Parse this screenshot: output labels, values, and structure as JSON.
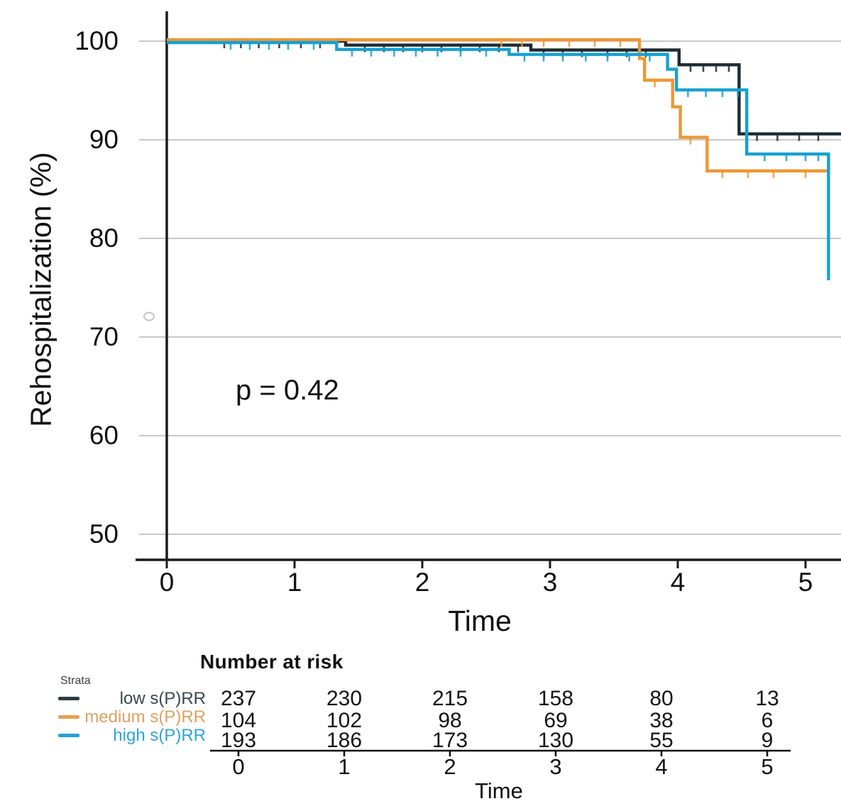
{
  "figure": {
    "ylabel": "Rehospitalization (%)",
    "xlabel": "Time",
    "p_value": "p = 0.42"
  },
  "chart_data": {
    "type": "line",
    "subtype": "kaplan-meier-step-curves",
    "title": "",
    "xlabel": "Time",
    "ylabel": "Rehospitalization (%)",
    "xlim": [
      0,
      5.3
    ],
    "ylim": [
      47,
      103
    ],
    "xticks": [
      0,
      1,
      2,
      3,
      4,
      5
    ],
    "yticks": [
      100,
      90,
      80,
      70,
      60,
      50
    ],
    "grid": "horizontal",
    "legend_position": "bottom-left",
    "annotation": {
      "text": "p = 0.42",
      "x": 0.55,
      "y": 64
    },
    "axis_color": "#1a1a1a",
    "grid_color": "#a9a9a9",
    "series": [
      {
        "id": "low",
        "name": "low s(P)RR",
        "color": "#1d2b32",
        "offset": 0,
        "steps": [
          [
            0,
            100
          ],
          [
            1.4,
            99.6
          ],
          [
            2.85,
            99.1
          ],
          [
            4.01,
            97.6
          ],
          [
            4.48,
            90.6
          ]
        ],
        "end": 5.28,
        "censors": [
          [
            0.45,
            100
          ],
          [
            0.58,
            100
          ],
          [
            0.72,
            100
          ],
          [
            0.88,
            100
          ],
          [
            1.05,
            100
          ],
          [
            1.2,
            100
          ],
          [
            1.55,
            99.6
          ],
          [
            1.7,
            99.6
          ],
          [
            1.85,
            99.6
          ],
          [
            2.0,
            99.6
          ],
          [
            2.15,
            99.6
          ],
          [
            2.3,
            99.6
          ],
          [
            2.45,
            99.6
          ],
          [
            2.6,
            99.6
          ],
          [
            2.75,
            99.6
          ],
          [
            2.95,
            99.1
          ],
          [
            3.1,
            99.1
          ],
          [
            3.25,
            99.1
          ],
          [
            3.45,
            99.1
          ],
          [
            3.6,
            99.1
          ],
          [
            3.75,
            99.1
          ],
          [
            4.1,
            97.6
          ],
          [
            4.2,
            97.6
          ],
          [
            4.3,
            97.6
          ],
          [
            4.4,
            97.6
          ],
          [
            4.62,
            90.6
          ],
          [
            4.78,
            90.6
          ],
          [
            4.95,
            90.6
          ],
          [
            5.1,
            90.6
          ]
        ]
      },
      {
        "id": "medium",
        "name": "medium s(P)RR",
        "color": "#ee9733",
        "offset": -2,
        "steps": [
          [
            0,
            100
          ],
          [
            3.7,
            98.1
          ],
          [
            3.74,
            95.9
          ],
          [
            3.96,
            93.2
          ],
          [
            4.02,
            90.1
          ],
          [
            4.23,
            86.7
          ]
        ],
        "end": 5.18,
        "censors": [
          [
            2.62,
            100
          ],
          [
            2.78,
            100
          ],
          [
            2.95,
            100
          ],
          [
            3.15,
            100
          ],
          [
            3.35,
            100
          ],
          [
            3.55,
            100
          ],
          [
            3.82,
            95.9
          ],
          [
            4.1,
            90.1
          ],
          [
            4.35,
            86.7
          ],
          [
            4.55,
            86.7
          ],
          [
            4.75,
            86.7
          ],
          [
            5.0,
            86.7
          ]
        ]
      },
      {
        "id": "high",
        "name": "high s(P)RR",
        "color": "#16a0d4",
        "offset": 2,
        "steps": [
          [
            0,
            100
          ],
          [
            1.33,
            99.3
          ],
          [
            2.68,
            98.8
          ],
          [
            3.92,
            97.3
          ],
          [
            3.99,
            95.2
          ],
          [
            4.54,
            88.7
          ]
        ],
        "end": 5.18,
        "final_drop": 75.9,
        "censors": [
          [
            0.5,
            100
          ],
          [
            0.65,
            100
          ],
          [
            0.8,
            100
          ],
          [
            0.95,
            100
          ],
          [
            1.15,
            100
          ],
          [
            1.45,
            99.3
          ],
          [
            1.6,
            99.3
          ],
          [
            1.78,
            99.3
          ],
          [
            1.95,
            99.3
          ],
          [
            2.12,
            99.3
          ],
          [
            2.3,
            99.3
          ],
          [
            2.5,
            99.3
          ],
          [
            2.8,
            98.8
          ],
          [
            2.95,
            98.8
          ],
          [
            3.1,
            98.8
          ],
          [
            3.28,
            98.8
          ],
          [
            3.45,
            98.8
          ],
          [
            3.62,
            98.8
          ],
          [
            3.78,
            98.8
          ],
          [
            4.08,
            95.2
          ],
          [
            4.22,
            95.2
          ],
          [
            4.35,
            95.2
          ],
          [
            4.47,
            95.2
          ],
          [
            4.68,
            88.7
          ],
          [
            4.85,
            88.7
          ],
          [
            5.0,
            88.7
          ],
          [
            5.1,
            88.7
          ]
        ]
      }
    ],
    "risk_table": {
      "header": "Number at risk",
      "strata_label": "Strata",
      "time_points": [
        0,
        1,
        2,
        3,
        4,
        5
      ],
      "xlabel": "Time",
      "rows": [
        {
          "name": "low s(P)RR",
          "dash_color": "#2e3c42",
          "label_color": "#3a4750",
          "values": [
            237,
            230,
            215,
            158,
            80,
            13
          ]
        },
        {
          "name": "medium s(P)RR",
          "dash_color": "#e5a150",
          "label_color": "#dea160",
          "values": [
            104,
            102,
            98,
            69,
            38,
            6
          ]
        },
        {
          "name": "high s(P)RR",
          "dash_color": "#25a2d2",
          "label_color": "#2ea6d8",
          "values": [
            193,
            186,
            173,
            130,
            55,
            9
          ]
        }
      ]
    }
  }
}
